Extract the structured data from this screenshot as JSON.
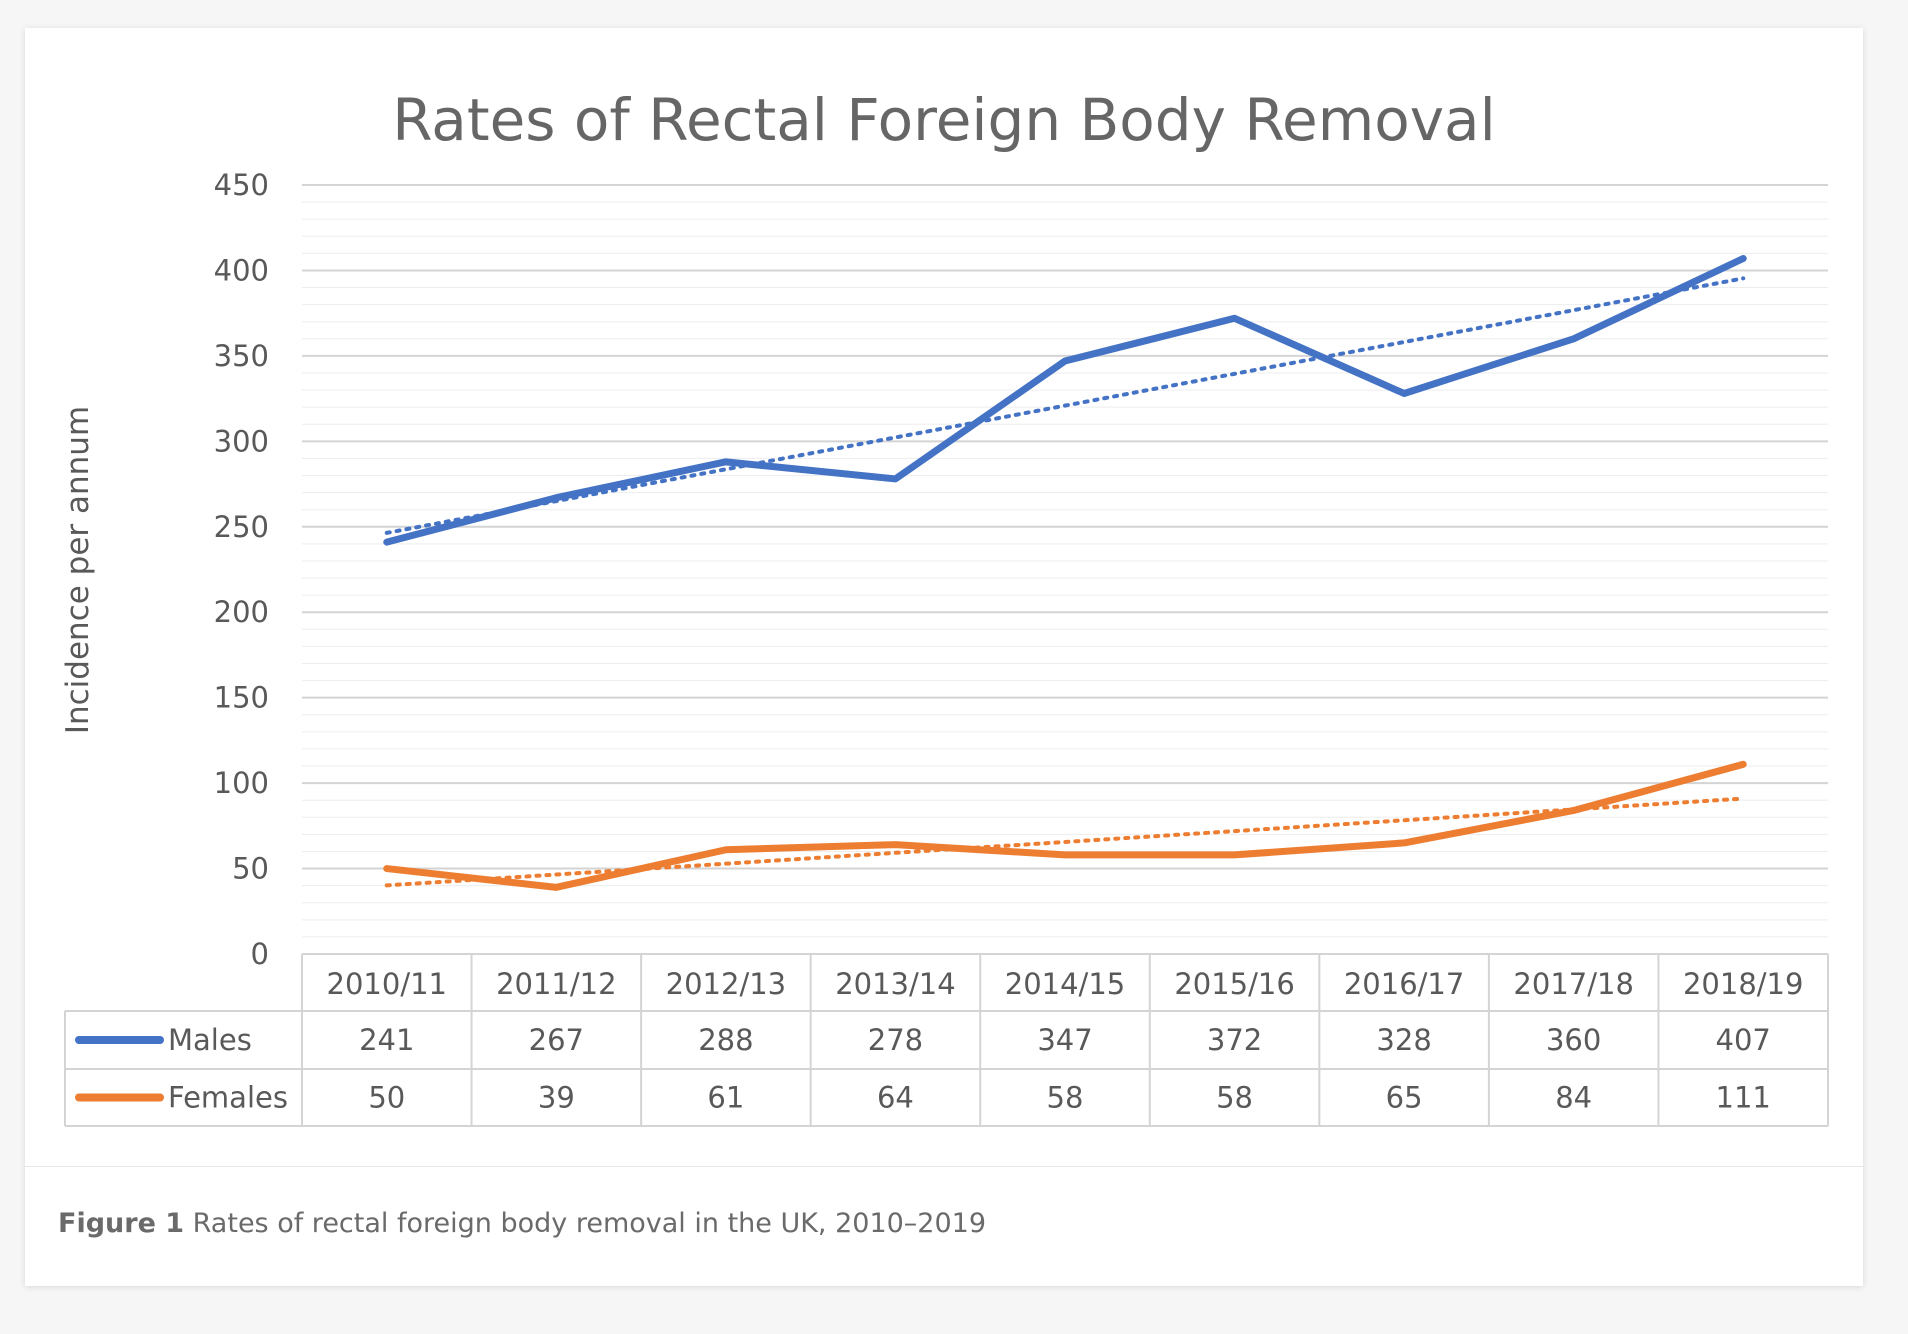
{
  "chart_data": {
    "type": "line",
    "title": "Rates of Rectal Foreign Body Removal",
    "xlabel": "",
    "ylabel": "Incidence per annum",
    "categories": [
      "2010/11",
      "2011/12",
      "2012/13",
      "2013/14",
      "2014/15",
      "2015/16",
      "2016/17",
      "2017/18",
      "2018/19"
    ],
    "ylim": [
      0,
      450
    ],
    "yticks": [
      0,
      50,
      100,
      150,
      200,
      250,
      300,
      350,
      400,
      450
    ],
    "grid": true,
    "trendlines": "linear, dotted",
    "series": [
      {
        "name": "Males",
        "color": "#4472c4",
        "values": [
          241,
          267,
          288,
          278,
          347,
          372,
          328,
          360,
          407
        ]
      },
      {
        "name": "Females",
        "color": "#ed7d31",
        "values": [
          50,
          39,
          61,
          64,
          58,
          58,
          65,
          84,
          111
        ]
      }
    ],
    "data_table": true
  },
  "caption": {
    "label": "Figure 1",
    "text": " Rates of rectal foreign body removal in the UK, 2010–2019"
  }
}
